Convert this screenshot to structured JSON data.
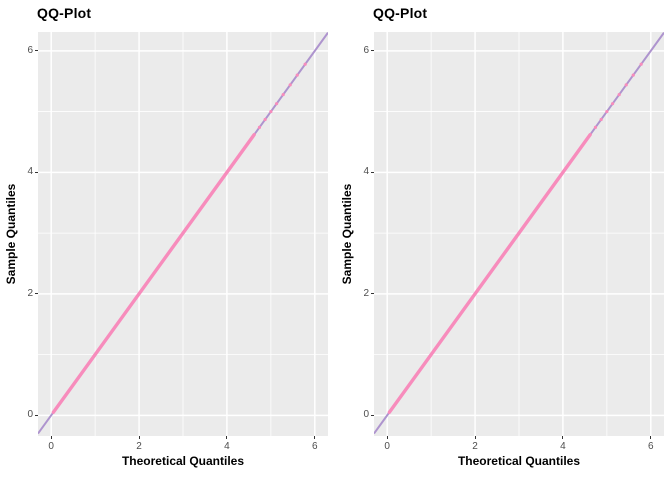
{
  "chart_data": [
    {
      "type": "scatter",
      "title": "QQ-Plot",
      "xlabel": "Theoretical Quantiles",
      "ylabel": "Sample Quantiles",
      "xlim": [
        -0.3,
        6.3
      ],
      "ylim": [
        -0.34,
        6.31
      ],
      "x_ticks": [
        0,
        2,
        4,
        6
      ],
      "y_ticks": [
        0,
        2,
        4,
        6
      ],
      "x_minor_ticks": [
        1,
        3,
        5
      ],
      "y_minor_ticks": [
        1,
        3,
        5
      ],
      "grid": "on",
      "legend": "none",
      "panel_bg": "#ebebeb",
      "grid_color": "#ffffff",
      "tick_color": "#333333",
      "tick_label_color": "#4d4d4d",
      "reference_line": {
        "type": "identity",
        "x1": -0.3,
        "y1": -0.3,
        "x2": 6.3,
        "y2": 6.3,
        "color": "#ae94ce",
        "width": 2
      },
      "qq_points": {
        "color": "#f78cbc",
        "dense_segment": {
          "from": 0.05,
          "to": 4.62,
          "width": 3.4
        },
        "sparse_points": [
          4.74,
          4.87,
          5.0,
          5.13,
          5.28,
          5.44,
          5.6,
          5.78
        ],
        "point_radius": 1.6
      }
    },
    {
      "type": "scatter",
      "title": "QQ-Plot",
      "xlabel": "Theoretical Quantiles",
      "ylabel": "Sample Quantiles",
      "xlim": [
        -0.3,
        6.3
      ],
      "ylim": [
        -0.34,
        6.31
      ],
      "x_ticks": [
        0,
        2,
        4,
        6
      ],
      "y_ticks": [
        0,
        2,
        4,
        6
      ],
      "x_minor_ticks": [
        1,
        3,
        5
      ],
      "y_minor_ticks": [
        1,
        3,
        5
      ],
      "grid": "on",
      "legend": "none",
      "panel_bg": "#ebebeb",
      "grid_color": "#ffffff",
      "tick_color": "#333333",
      "tick_label_color": "#4d4d4d",
      "reference_line": {
        "type": "identity",
        "x1": -0.3,
        "y1": -0.3,
        "x2": 6.3,
        "y2": 6.3,
        "color": "#ae94ce",
        "width": 2
      },
      "qq_points": {
        "color": "#f78cbc",
        "dense_segment": {
          "from": 0.05,
          "to": 4.62,
          "width": 3.4
        },
        "sparse_points": [
          4.74,
          4.87,
          5.0,
          5.13,
          5.28,
          5.44,
          5.6,
          5.78
        ],
        "point_radius": 1.6
      }
    }
  ]
}
